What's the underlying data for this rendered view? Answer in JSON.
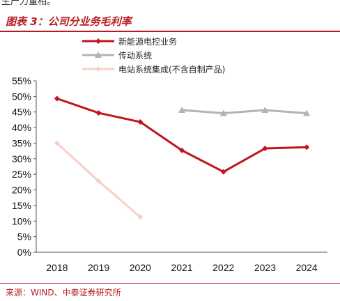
{
  "top_cut_text": "生产力量相。",
  "figure_title": "图表 3：公司分业务毛利率",
  "source_note": "来源：WIND、中泰证券研究所",
  "chart_data": {
    "type": "line",
    "title": "",
    "xlabel": "",
    "ylabel": "",
    "categories": [
      "2018",
      "2019",
      "2020",
      "2021",
      "2022",
      "2023",
      "2024"
    ],
    "ylim": [
      0,
      55
    ],
    "ytick_step": 5,
    "yticks": [
      "0%",
      "5%",
      "10%",
      "15%",
      "20%",
      "25%",
      "30%",
      "35%",
      "40%",
      "45%",
      "50%",
      "55%"
    ],
    "grid": false,
    "legend_position": "top-left",
    "series": [
      {
        "name": "新能源电控业务",
        "color": "#c0151c",
        "marker": "diamond",
        "values": [
          49.3,
          44.7,
          41.8,
          32.7,
          25.8,
          33.3,
          33.7
        ]
      },
      {
        "name": "传动系统",
        "color": "#b3b3b3",
        "marker": "triangle",
        "values": [
          null,
          null,
          null,
          45.6,
          44.6,
          45.6,
          44.6
        ]
      },
      {
        "name": "电站系统集成(不含自制产品)",
        "color": "#f6cfc9",
        "marker": "diamond",
        "values": [
          35.0,
          22.8,
          11.3,
          null,
          null,
          null,
          null
        ]
      }
    ]
  }
}
